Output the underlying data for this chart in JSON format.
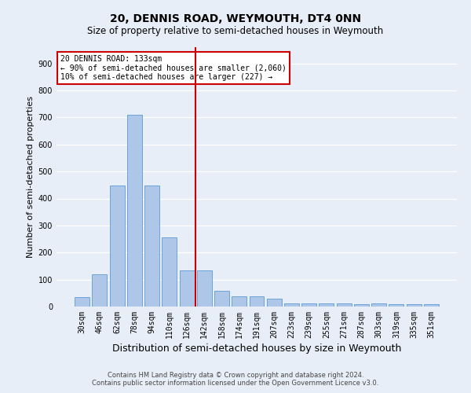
{
  "title": "20, DENNIS ROAD, WEYMOUTH, DT4 0NN",
  "subtitle": "Size of property relative to semi-detached houses in Weymouth",
  "xlabel": "Distribution of semi-detached houses by size in Weymouth",
  "ylabel": "Number of semi-detached properties",
  "categories": [
    "30sqm",
    "46sqm",
    "62sqm",
    "78sqm",
    "94sqm",
    "110sqm",
    "126sqm",
    "142sqm",
    "158sqm",
    "174sqm",
    "191sqm",
    "207sqm",
    "223sqm",
    "239sqm",
    "255sqm",
    "271sqm",
    "287sqm",
    "303sqm",
    "319sqm",
    "335sqm",
    "351sqm"
  ],
  "values": [
    35,
    118,
    447,
    710,
    447,
    255,
    135,
    135,
    58,
    37,
    37,
    28,
    13,
    13,
    13,
    13,
    8,
    13,
    8,
    8,
    8
  ],
  "bar_color": "#aec6e8",
  "bar_edge_color": "#5b9bd5",
  "annotation_line1": "20 DENNIS ROAD: 133sqm",
  "annotation_line2": "← 90% of semi-detached houses are smaller (2,060)",
  "annotation_line3": "10% of semi-detached houses are larger (227) →",
  "annotation_box_color": "#ffffff",
  "annotation_box_edge": "#cc0000",
  "vline_color": "#cc0000",
  "vline_x_bin": 6,
  "ylim": [
    0,
    960
  ],
  "yticks": [
    0,
    100,
    200,
    300,
    400,
    500,
    600,
    700,
    800,
    900
  ],
  "footer_line1": "Contains HM Land Registry data © Crown copyright and database right 2024.",
  "footer_line2": "Contains public sector information licensed under the Open Government Licence v3.0.",
  "bg_color": "#e8eef8",
  "fig_bg_color": "#e8eef8",
  "grid_color": "#ffffff",
  "title_fontsize": 10,
  "subtitle_fontsize": 8.5,
  "axis_label_fontsize": 8,
  "xlabel_fontsize": 9,
  "tick_fontsize": 7,
  "footer_fontsize": 6
}
